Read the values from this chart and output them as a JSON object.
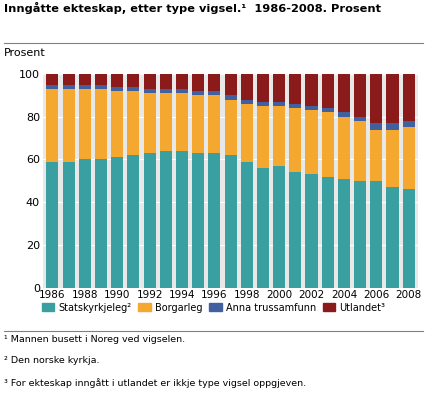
{
  "title": "Inngåtte ekteskap, etter type vigsel.¹  1986-2008. Prosent",
  "prosent_label": "Prosent",
  "years": [
    1986,
    1987,
    1988,
    1989,
    1990,
    1991,
    1992,
    1993,
    1994,
    1995,
    1996,
    1997,
    1998,
    1999,
    2000,
    2001,
    2002,
    2003,
    2004,
    2005,
    2006,
    2007,
    2008
  ],
  "statskyrkjeleg": [
    59,
    59,
    60,
    60,
    61,
    62,
    63,
    64,
    64,
    63,
    63,
    62,
    59,
    56,
    57,
    54,
    53,
    52,
    51,
    50,
    50,
    47,
    46
  ],
  "borgarleg": [
    34,
    34,
    33,
    33,
    31,
    30,
    28,
    27,
    27,
    27,
    27,
    26,
    27,
    29,
    28,
    30,
    30,
    30,
    29,
    28,
    24,
    27,
    29
  ],
  "anna_trussamfunn": [
    2,
    2,
    2,
    2,
    2,
    2,
    2,
    2,
    2,
    2,
    2,
    2,
    2,
    2,
    2,
    2,
    2,
    2,
    2,
    2,
    3,
    3,
    3
  ],
  "utlandet": [
    5,
    5,
    5,
    5,
    6,
    6,
    7,
    7,
    7,
    8,
    8,
    10,
    12,
    13,
    13,
    14,
    15,
    16,
    18,
    20,
    23,
    23,
    22
  ],
  "color_statskyrkjeleg": "#3a9fa0",
  "color_borgarleg": "#f5a830",
  "color_anna": "#4060a0",
  "color_utlandet": "#8b1a1a",
  "footnotes": [
    "¹ Mannen busett i Noreg ved vigselen.",
    "² Den norske kyrkja.",
    "³ For ekteskap inngått i utlandet er ikkje type vigsel oppgjeven."
  ],
  "legend_labels": [
    "Statskyrkjeleg²",
    "Borgarleg",
    "Anna trussamfunn",
    "Utlandet³"
  ],
  "ylim": [
    0,
    100
  ],
  "background_color": "#ffffff",
  "plot_bg": "#e8e8e8"
}
